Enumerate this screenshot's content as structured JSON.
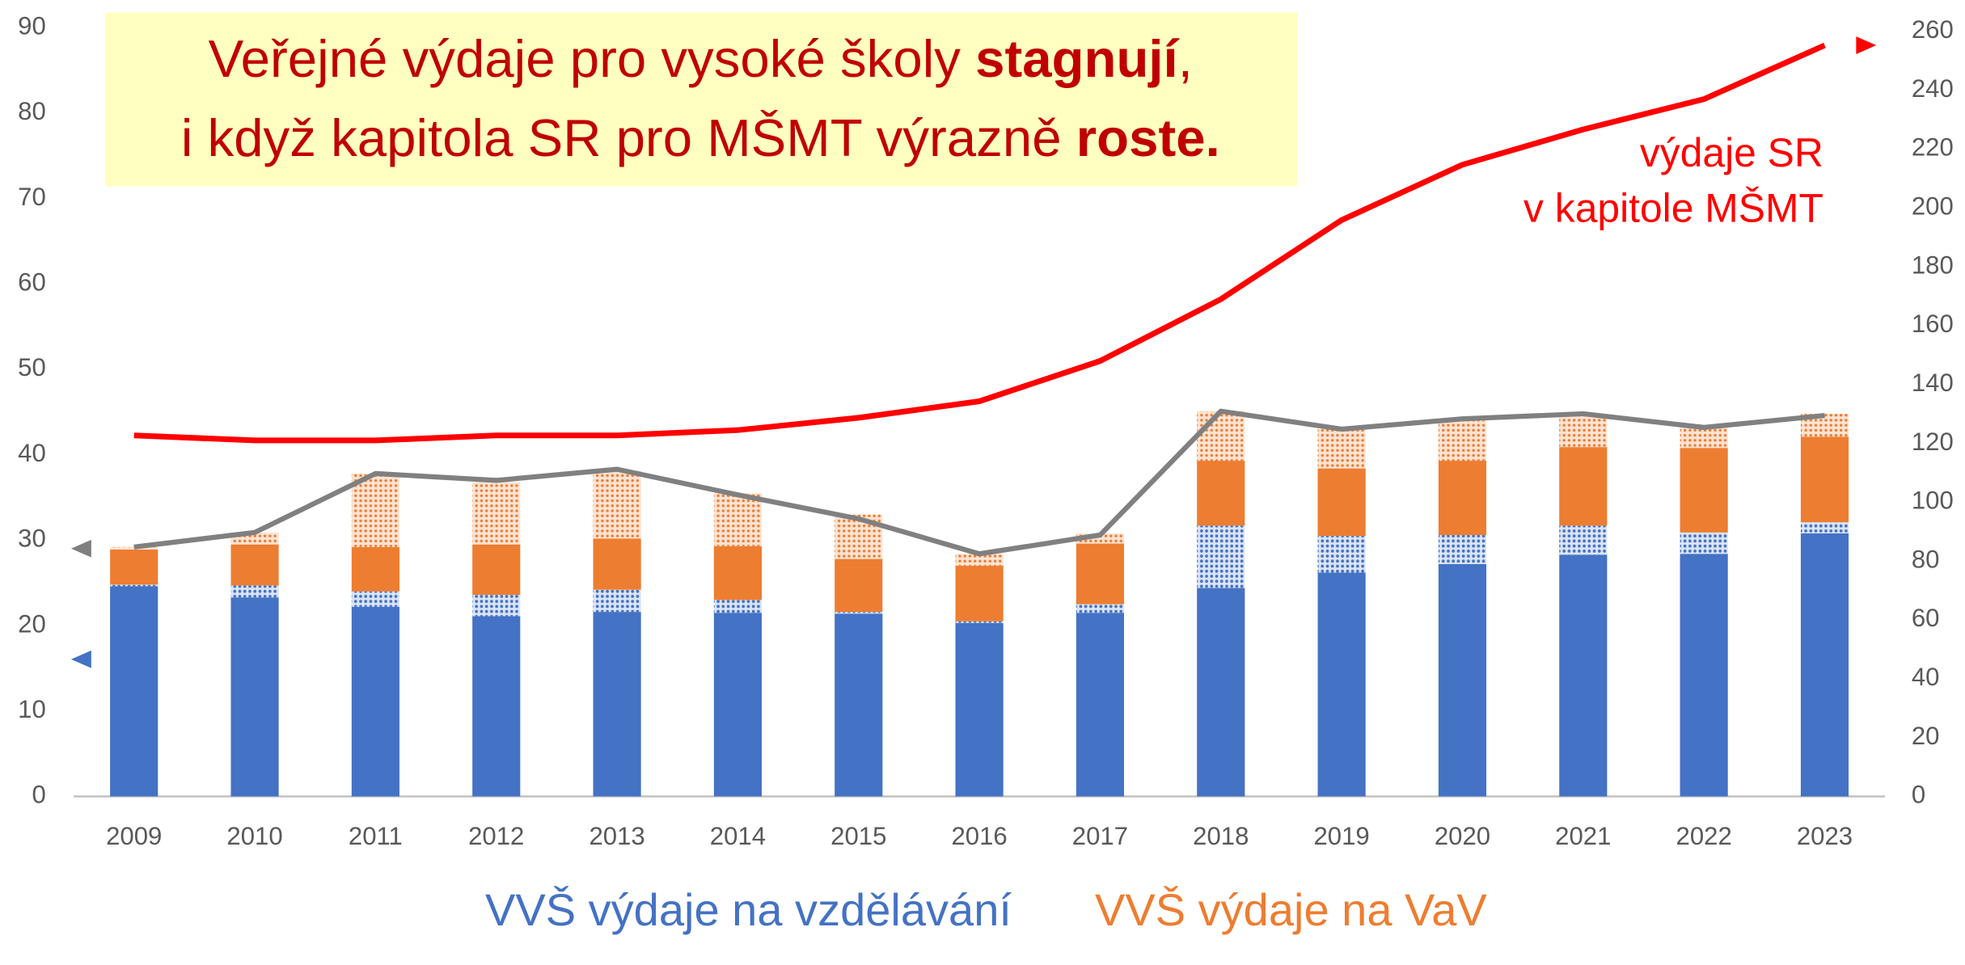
{
  "chart_data": {
    "type": "bar",
    "stacked": true,
    "title": [
      {
        "text": "Veřejné výdaje pro vysoké školy ",
        "bold": false,
        "line": 0
      },
      {
        "text": "stagnují",
        "bold": true,
        "line": 0
      },
      {
        "text": ",",
        "bold": false,
        "line": 0
      },
      {
        "text": "i když kapitola SR pro MŠMT výrazně ",
        "bold": false,
        "line": 1
      },
      {
        "text": "roste.",
        "bold": true,
        "line": 1
      }
    ],
    "annotation": [
      "výdaje SR",
      "v kapitole MŠMT"
    ],
    "categories": [
      "2009",
      "2010",
      "2011",
      "2012",
      "2013",
      "2014",
      "2015",
      "2016",
      "2017",
      "2018",
      "2019",
      "2020",
      "2021",
      "2022",
      "2023"
    ],
    "series": [
      {
        "name": "VVŠ výdaje na vzdělávání",
        "color": "#4472c4",
        "values": [
          24.6,
          23.3,
          22.2,
          21.1,
          21.6,
          21.5,
          21.4,
          20.3,
          21.5,
          24.4,
          26.2,
          27.2,
          28.3,
          28.4,
          30.8
        ]
      },
      {
        "color": "#4472c4",
        "pattern": "dots",
        "values": [
          0.2,
          1.4,
          1.8,
          2.5,
          2.6,
          1.5,
          0.2,
          0.2,
          1.0,
          7.3,
          4.3,
          3.4,
          3.4,
          2.5,
          1.3
        ]
      },
      {
        "name": "VVŠ výdaje na VaV",
        "color": "#ed7d31",
        "values": [
          4.1,
          4.8,
          5.2,
          5.9,
          6.0,
          6.3,
          6.2,
          6.5,
          7.1,
          7.6,
          7.9,
          8.7,
          9.2,
          9.9,
          10.0
        ]
      },
      {
        "color": "#ed7d31",
        "pattern": "dots",
        "values": [
          0.3,
          1.4,
          8.6,
          7.3,
          7.9,
          6.2,
          5.2,
          1.4,
          1.2,
          5.8,
          4.6,
          4.7,
          3.7,
          2.4,
          2.7
        ]
      },
      {
        "type": "line",
        "color": "#808080",
        "values": [
          29.2,
          30.9,
          37.8,
          37.0,
          38.3,
          35.3,
          32.5,
          28.4,
          30.6,
          45.1,
          43.0,
          44.2,
          44.8,
          43.2,
          44.6
        ]
      },
      {
        "type": "line",
        "axis": "y2",
        "color": "#ff0000",
        "values": [
          122.7,
          121.0,
          121.0,
          122.7,
          122.7,
          124.5,
          128.7,
          134.3,
          148.0,
          169.0,
          195.9,
          214.7,
          226.7,
          237.0,
          255.3
        ]
      }
    ],
    "ylim": [
      0,
      90
    ],
    "yticks": [
      0,
      10,
      20,
      30,
      40,
      50,
      60,
      70,
      80,
      90
    ],
    "y2lim": [
      0,
      260
    ],
    "y2ticks": [
      0,
      20,
      40,
      60,
      80,
      100,
      120,
      140,
      160,
      180,
      200,
      220,
      240,
      260
    ],
    "grid": false
  }
}
